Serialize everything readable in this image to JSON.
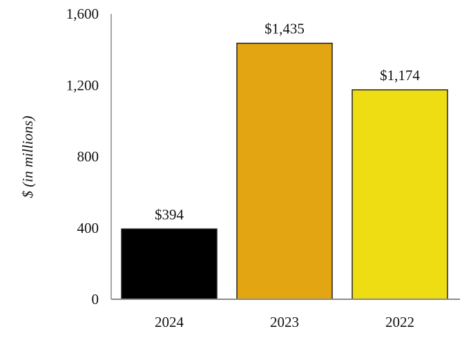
{
  "chart_data": {
    "type": "bar",
    "title": "",
    "xlabel": "",
    "ylabel": "$ (in millions)",
    "ylim": [
      0,
      1600
    ],
    "yticks": [
      0,
      400,
      800,
      1200,
      1600
    ],
    "ytick_labels": [
      "0",
      "400",
      "800",
      "1,200",
      "1,600"
    ],
    "categories": [
      "2024",
      "2023",
      "2022"
    ],
    "values": [
      394,
      1435,
      1174
    ],
    "data_labels": [
      "$394",
      "$1,435",
      "$1,174"
    ],
    "colors": [
      "#000000",
      "#E3A612",
      "#EEDD12"
    ],
    "grid": false,
    "legend": "none"
  }
}
